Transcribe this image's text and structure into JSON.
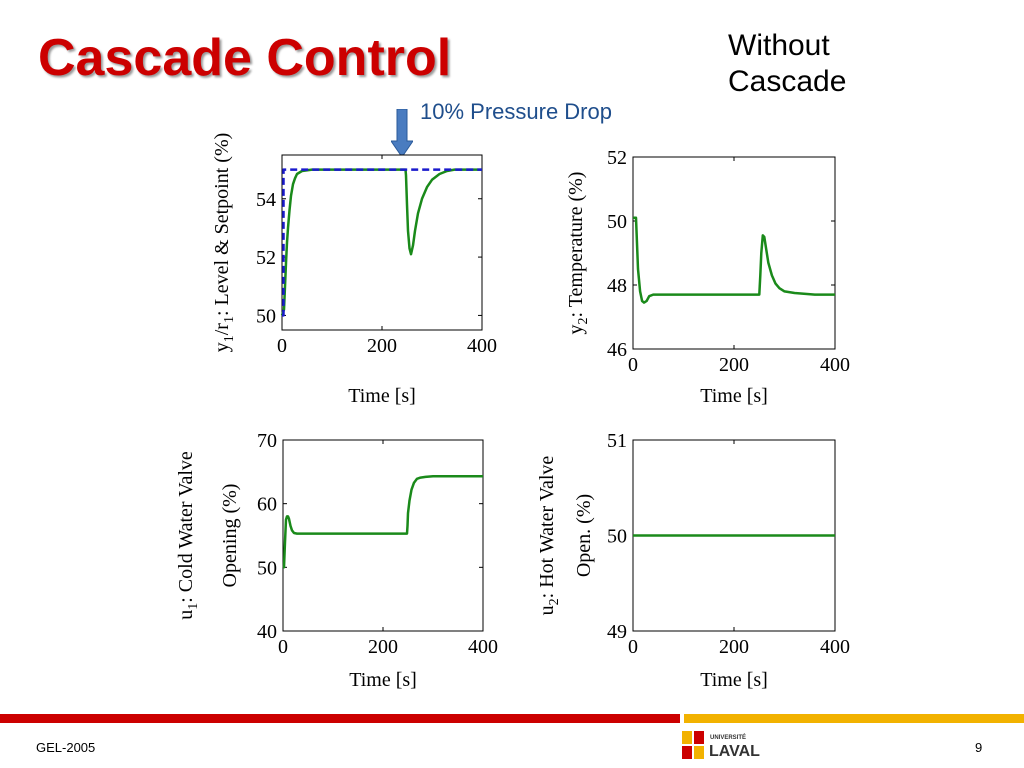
{
  "slide": {
    "title": "Cascade Control",
    "corner_note_line1": "Without",
    "corner_note_line2": "Cascade",
    "annotation": "10% Pressure Drop",
    "footer_left": "GEL-2005",
    "page_number": "9",
    "logo": {
      "top_text": "UNIVERSITÉ",
      "main_text": "LAVAL"
    }
  },
  "colors": {
    "title": "#cc0000",
    "annotation": "#1f4e8c",
    "arrow": "#4a7cc0",
    "process_line": "#1a8a1a",
    "setpoint_line": "#1a1acc",
    "bar_red": "#cc0000",
    "bar_yellow": "#f2b200"
  },
  "chart_data": [
    {
      "type": "line",
      "ylabel_parts": [
        "y",
        "1",
        "/r",
        "1",
        ": Level & Setpoint (%)"
      ],
      "xlabel": "Time [s]",
      "xlim": [
        0,
        400
      ],
      "ylim": [
        49.5,
        55.5
      ],
      "xticks": [
        0,
        200,
        400
      ],
      "yticks": [
        50,
        52,
        54
      ],
      "series": [
        {
          "style": "solid",
          "color": "#1a8a1a",
          "x": [
            0,
            4,
            6,
            8,
            10,
            12,
            15,
            18,
            22,
            26,
            30,
            40,
            60,
            100,
            200,
            247,
            248,
            250,
            252,
            255,
            258,
            262,
            266,
            272,
            280,
            290,
            300,
            315,
            330,
            345,
            360,
            400
          ],
          "y": [
            50.0,
            50.2,
            51.0,
            51.8,
            52.5,
            53.0,
            53.6,
            54.1,
            54.5,
            54.7,
            54.85,
            54.95,
            55.0,
            55.0,
            55.0,
            55.0,
            54.8,
            53.8,
            52.9,
            52.3,
            52.1,
            52.4,
            52.9,
            53.5,
            54.0,
            54.4,
            54.65,
            54.85,
            54.95,
            55.0,
            55.0,
            55.0
          ]
        },
        {
          "style": "dashed",
          "color": "#1a1acc",
          "x": [
            0,
            3,
            3,
            400
          ],
          "y": [
            50.0,
            50.0,
            55.0,
            55.0
          ]
        }
      ]
    },
    {
      "type": "line",
      "ylabel_parts": [
        "y",
        "2",
        ": Temperature (%)"
      ],
      "xlabel": "Time [s]",
      "xlim": [
        0,
        400
      ],
      "ylim": [
        46,
        52
      ],
      "xticks": [
        0,
        200,
        400
      ],
      "yticks": [
        46,
        48,
        50,
        52
      ],
      "series": [
        {
          "style": "solid",
          "color": "#1a8a1a",
          "x": [
            0,
            6,
            8,
            10,
            14,
            18,
            22,
            27,
            32,
            40,
            60,
            100,
            200,
            250,
            252,
            254,
            257,
            260,
            264,
            268,
            275,
            282,
            290,
            300,
            320,
            360,
            400
          ],
          "y": [
            50.1,
            50.1,
            49.3,
            48.5,
            47.8,
            47.5,
            47.45,
            47.5,
            47.65,
            47.7,
            47.7,
            47.7,
            47.7,
            47.7,
            48.3,
            49.0,
            49.55,
            49.5,
            49.1,
            48.7,
            48.3,
            48.05,
            47.9,
            47.8,
            47.75,
            47.7,
            47.7
          ]
        }
      ]
    },
    {
      "type": "line",
      "ylabel_parts": [
        "u",
        "1",
        ": Cold Water Valve"
      ],
      "ylabel_line2": "Opening (%)",
      "xlabel": "Time [s]",
      "xlim": [
        0,
        400
      ],
      "ylim": [
        40,
        70
      ],
      "xticks": [
        0,
        200,
        400
      ],
      "yticks": [
        40,
        50,
        60,
        70
      ],
      "series": [
        {
          "style": "solid",
          "color": "#1a8a1a",
          "x": [
            0,
            2,
            4,
            6,
            8,
            10,
            12,
            15,
            18,
            22,
            28,
            35,
            60,
            100,
            200,
            248,
            249,
            250,
            253,
            257,
            262,
            268,
            275,
            285,
            300,
            330,
            400
          ],
          "y": [
            50.0,
            50.0,
            54.0,
            57.5,
            58.0,
            58.0,
            57.6,
            56.5,
            55.8,
            55.4,
            55.3,
            55.3,
            55.3,
            55.3,
            55.3,
            55.3,
            56.5,
            58.5,
            60.5,
            62.2,
            63.3,
            63.9,
            64.1,
            64.2,
            64.3,
            64.3,
            64.3
          ]
        }
      ]
    },
    {
      "type": "line",
      "ylabel_parts": [
        "u",
        "2",
        ": Hot Water Valve"
      ],
      "ylabel_line2": "Open. (%)",
      "xlabel": "Time [s]",
      "xlim": [
        0,
        400
      ],
      "ylim": [
        49,
        51
      ],
      "xticks": [
        0,
        200,
        400
      ],
      "yticks": [
        49,
        50,
        51
      ],
      "series": [
        {
          "style": "solid",
          "color": "#1a8a1a",
          "x": [
            0,
            400
          ],
          "y": [
            50,
            50
          ]
        }
      ]
    }
  ]
}
